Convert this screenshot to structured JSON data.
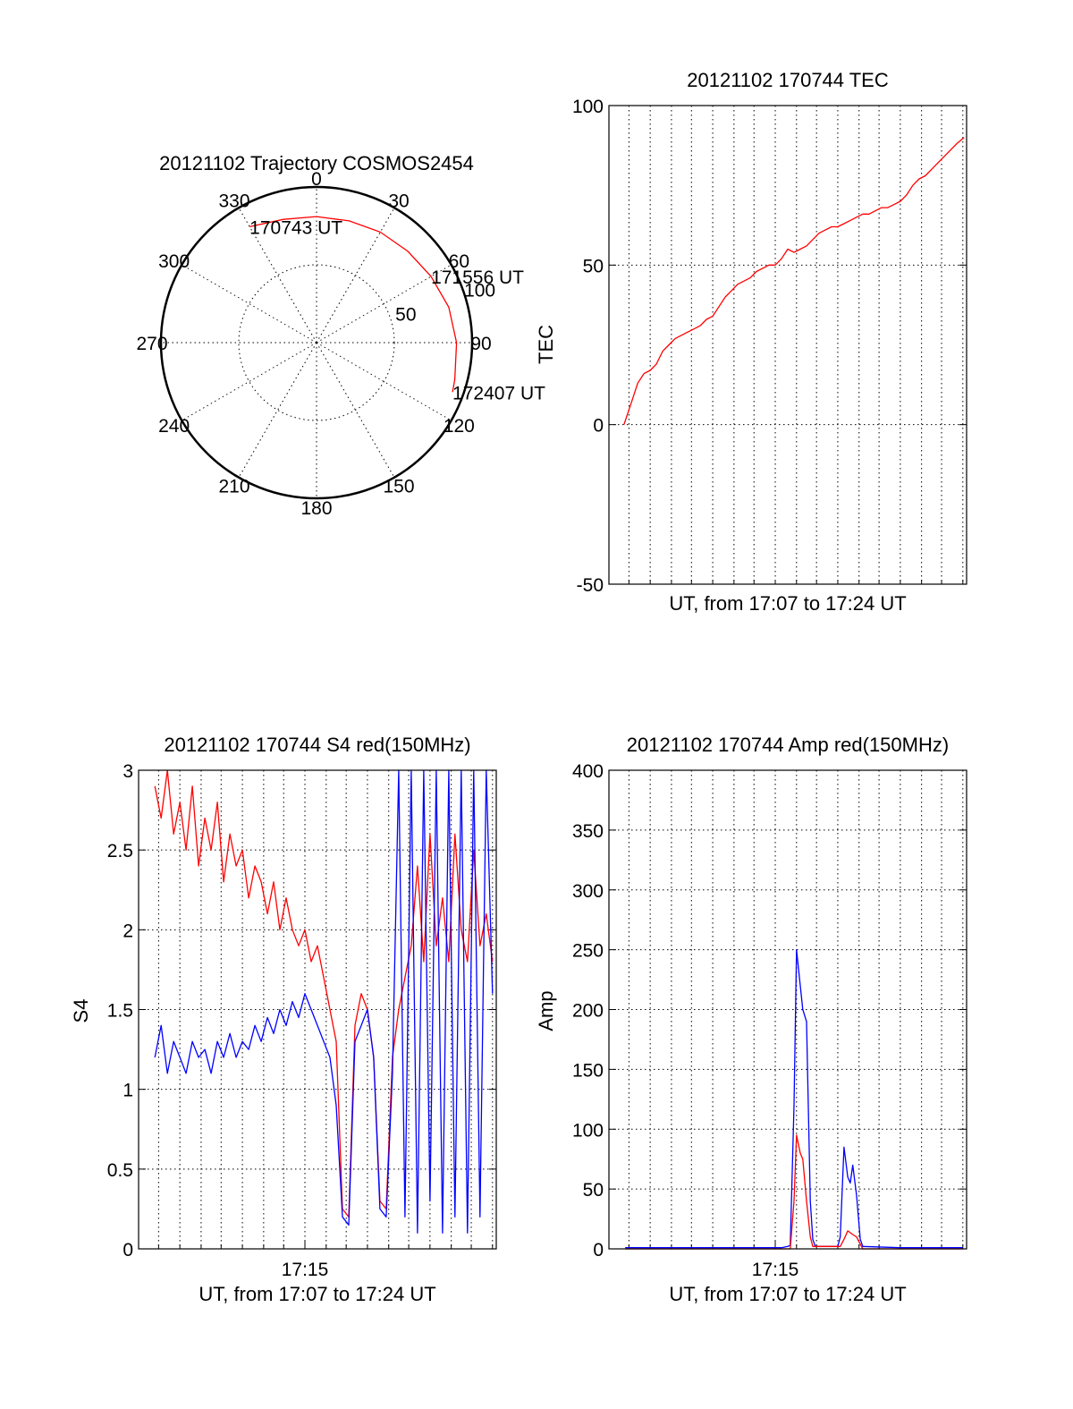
{
  "colors": {
    "red": "#ff0000",
    "blue": "#0000ff",
    "axis": "#000000",
    "background": "#ffffff"
  },
  "chart_data": [
    {
      "type": "polar",
      "title": "20121102 Trajectory COSMOS2454",
      "azimuth_labels": [
        "0",
        "30",
        "60",
        "90",
        "120",
        "150",
        "180",
        "210",
        "240",
        "270",
        "300",
        "330"
      ],
      "azimuth_values": [
        0,
        30,
        60,
        90,
        120,
        150,
        180,
        210,
        240,
        270,
        300,
        330
      ],
      "radial_labels": [
        "50",
        "100"
      ],
      "radial_values": [
        50,
        100
      ],
      "grid": true,
      "series": [
        {
          "color": "#ff0000",
          "points": [
            {
              "az": 330,
              "r": 86
            },
            {
              "az": 345,
              "r": 82
            },
            {
              "az": 0,
              "r": 81
            },
            {
              "az": 15,
              "r": 81
            },
            {
              "az": 30,
              "r": 82
            },
            {
              "az": 45,
              "r": 83
            },
            {
              "az": 60,
              "r": 85
            },
            {
              "az": 75,
              "r": 88
            },
            {
              "az": 90,
              "r": 90
            },
            {
              "az": 105,
              "r": 92
            },
            {
              "az": 110,
              "r": 93
            }
          ]
        }
      ],
      "annotations": [
        {
          "text": "170743 UT",
          "az": 330,
          "r": 86
        },
        {
          "text": "171556 UT",
          "az": 60,
          "r": 85
        },
        {
          "text": "172407 UT",
          "az": 110,
          "r": 93
        }
      ]
    },
    {
      "type": "line",
      "title": "20121102 170744 TEC",
      "xlabel": "UT, from 17:07 to 17:24 UT",
      "ylabel": "TEC",
      "xlim": [
        17.117,
        17.403
      ],
      "ylim": [
        -50,
        100
      ],
      "yticks": [
        -50,
        0,
        50,
        100
      ],
      "xticks": [],
      "x_grid": [
        17.133,
        17.15,
        17.167,
        17.183,
        17.2,
        17.217,
        17.233,
        17.25,
        17.267,
        17.283,
        17.3,
        17.317,
        17.333,
        17.35,
        17.367,
        17.383,
        17.4
      ],
      "grid": true,
      "series": [
        {
          "color": "#ff0000",
          "x": [
            17.129,
            17.135,
            17.14,
            17.145,
            17.15,
            17.155,
            17.16,
            17.165,
            17.17,
            17.175,
            17.18,
            17.185,
            17.19,
            17.195,
            17.2,
            17.205,
            17.21,
            17.215,
            17.22,
            17.225,
            17.23,
            17.235,
            17.24,
            17.245,
            17.25,
            17.255,
            17.26,
            17.265,
            17.27,
            17.275,
            17.28,
            17.285,
            17.29,
            17.295,
            17.3,
            17.305,
            17.31,
            17.315,
            17.32,
            17.325,
            17.33,
            17.335,
            17.34,
            17.345,
            17.35,
            17.355,
            17.36,
            17.365,
            17.37,
            17.375,
            17.38,
            17.385,
            17.39,
            17.395,
            17.401
          ],
          "y": [
            0,
            7,
            13,
            16,
            17,
            19,
            23,
            25,
            27,
            28,
            29,
            30,
            31,
            33,
            34,
            37,
            40,
            42,
            44,
            45,
            46,
            48,
            49,
            50,
            50,
            52,
            55,
            54,
            55,
            56,
            58,
            60,
            61,
            62,
            62,
            63,
            64,
            65,
            66,
            66,
            67,
            68,
            68,
            69,
            70,
            72,
            75,
            77,
            78,
            80,
            82,
            84,
            86,
            88,
            90
          ]
        }
      ]
    },
    {
      "type": "line",
      "title": "20121102 170744 S4 red(150MHz)",
      "xlabel": "UT, from 17:07 to 17:24 UT",
      "ylabel": "S4",
      "xlim": [
        17.117,
        17.403
      ],
      "ylim": [
        0,
        3
      ],
      "yticks": [
        "0",
        "0.5",
        "1",
        "1.5",
        "2",
        "2.5",
        "3"
      ],
      "ytick_values": [
        0,
        0.5,
        1,
        1.5,
        2,
        2.5,
        3
      ],
      "xticks": [
        "17:15"
      ],
      "xtick_values": [
        17.25
      ],
      "x_grid": [
        17.133,
        17.15,
        17.167,
        17.183,
        17.2,
        17.217,
        17.233,
        17.25,
        17.267,
        17.283,
        17.3,
        17.317,
        17.333,
        17.35,
        17.367,
        17.383,
        17.4
      ],
      "grid": true,
      "series": [
        {
          "color": "#ff0000",
          "x": [
            17.13,
            17.135,
            17.14,
            17.145,
            17.15,
            17.155,
            17.16,
            17.165,
            17.17,
            17.175,
            17.18,
            17.185,
            17.19,
            17.195,
            17.2,
            17.205,
            17.21,
            17.215,
            17.22,
            17.225,
            17.23,
            17.235,
            17.24,
            17.245,
            17.25,
            17.255,
            17.26,
            17.265,
            17.27,
            17.275,
            17.28,
            17.285,
            17.29,
            17.295,
            17.3,
            17.305,
            17.31,
            17.315,
            17.32,
            17.325,
            17.33,
            17.335,
            17.34,
            17.345,
            17.35,
            17.355,
            17.36,
            17.365,
            17.37,
            17.375,
            17.38,
            17.385,
            17.39,
            17.395,
            17.4
          ],
          "y": [
            2.9,
            2.7,
            3.0,
            2.6,
            2.8,
            2.5,
            2.9,
            2.4,
            2.7,
            2.5,
            2.8,
            2.3,
            2.6,
            2.4,
            2.5,
            2.2,
            2.4,
            2.3,
            2.1,
            2.3,
            2.0,
            2.2,
            2.0,
            1.9,
            2.0,
            1.8,
            1.9,
            1.7,
            1.5,
            1.3,
            0.25,
            0.2,
            1.4,
            1.6,
            1.5,
            1.2,
            0.3,
            0.25,
            1.2,
            1.5,
            1.7,
            1.9,
            2.4,
            1.8,
            2.6,
            1.9,
            2.2,
            1.8,
            2.6,
            2.0,
            1.8,
            2.5,
            1.9,
            2.1,
            1.8
          ]
        },
        {
          "color": "#0000ff",
          "x": [
            17.13,
            17.135,
            17.14,
            17.145,
            17.15,
            17.155,
            17.16,
            17.165,
            17.17,
            17.175,
            17.18,
            17.185,
            17.19,
            17.195,
            17.2,
            17.205,
            17.21,
            17.215,
            17.22,
            17.225,
            17.23,
            17.235,
            17.24,
            17.245,
            17.25,
            17.255,
            17.26,
            17.265,
            17.27,
            17.275,
            17.28,
            17.285,
            17.29,
            17.295,
            17.3,
            17.305,
            17.31,
            17.315,
            17.32,
            17.325,
            17.33,
            17.335,
            17.34,
            17.345,
            17.35,
            17.355,
            17.36,
            17.365,
            17.37,
            17.375,
            17.38,
            17.385,
            17.39,
            17.395,
            17.4
          ],
          "y": [
            1.2,
            1.4,
            1.1,
            1.3,
            1.2,
            1.1,
            1.3,
            1.2,
            1.25,
            1.1,
            1.3,
            1.2,
            1.35,
            1.2,
            1.3,
            1.25,
            1.4,
            1.3,
            1.45,
            1.35,
            1.5,
            1.4,
            1.55,
            1.45,
            1.6,
            1.5,
            1.4,
            1.3,
            1.2,
            0.9,
            0.2,
            0.15,
            1.3,
            1.4,
            1.5,
            1.2,
            0.25,
            0.2,
            1.1,
            3.0,
            0.2,
            3.0,
            0.1,
            3.0,
            0.3,
            3.0,
            0.1,
            3.0,
            0.2,
            3.0,
            0.1,
            3.0,
            0.2,
            3.0,
            1.6
          ]
        }
      ]
    },
    {
      "type": "line",
      "title": "20121102 170744 Amp red(150MHz)",
      "xlabel": "UT, from 17:07 to 17:24 UT",
      "ylabel": "Amp",
      "xlim": [
        17.117,
        17.403
      ],
      "ylim": [
        0,
        400
      ],
      "yticks": [
        "0",
        "50",
        "100",
        "150",
        "200",
        "250",
        "300",
        "350",
        "400"
      ],
      "ytick_values": [
        0,
        50,
        100,
        150,
        200,
        250,
        300,
        350,
        400
      ],
      "xticks": [
        "17:15"
      ],
      "xtick_values": [
        17.25
      ],
      "x_grid": [
        17.133,
        17.15,
        17.167,
        17.183,
        17.2,
        17.217,
        17.233,
        17.25,
        17.267,
        17.283,
        17.3,
        17.317,
        17.333,
        17.35,
        17.367,
        17.383,
        17.4
      ],
      "grid": true,
      "series": [
        {
          "color": "#0000ff",
          "x": [
            17.13,
            17.2,
            17.255,
            17.26,
            17.262,
            17.265,
            17.267,
            17.27,
            17.272,
            17.275,
            17.278,
            17.28,
            17.282,
            17.3,
            17.302,
            17.305,
            17.308,
            17.31,
            17.312,
            17.315,
            17.318,
            17.32,
            17.35,
            17.4
          ],
          "y": [
            1,
            1,
            1,
            2,
            3,
            120,
            250,
            220,
            200,
            190,
            40,
            8,
            2,
            2,
            10,
            85,
            60,
            55,
            70,
            45,
            8,
            2,
            1,
            1
          ]
        },
        {
          "color": "#ff0000",
          "x": [
            17.13,
            17.262,
            17.265,
            17.267,
            17.27,
            17.272,
            17.275,
            17.278,
            17.28,
            17.302,
            17.305,
            17.308,
            17.312,
            17.315,
            17.318,
            17.32,
            17.4
          ],
          "y": [
            0,
            0,
            40,
            95,
            80,
            75,
            40,
            10,
            2,
            2,
            8,
            15,
            12,
            10,
            4,
            0,
            0
          ]
        }
      ]
    }
  ]
}
